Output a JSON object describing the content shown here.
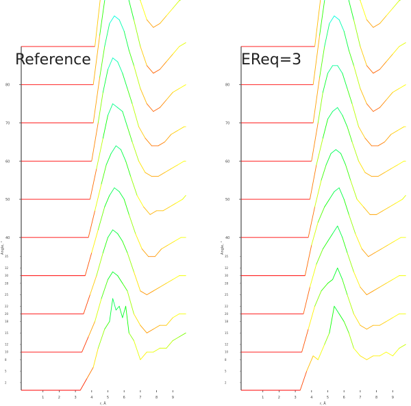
{
  "chart_data": [
    {
      "type": "line",
      "title": "Reference",
      "xlabel": "r, Å",
      "ylabel": "Angle, °",
      "xlim": [
        0,
        10
      ],
      "ylim": [
        0,
        95
      ],
      "xticks": [
        1,
        2,
        3,
        4,
        5,
        6,
        7,
        8,
        9
      ],
      "yticks": [
        40,
        50,
        60,
        70,
        80
      ],
      "ytick_labels": [
        "40",
        "50",
        "60",
        "70",
        "80"
      ],
      "small_yticks": [
        2,
        5,
        8,
        10,
        12,
        15,
        18,
        20,
        22,
        25,
        28,
        30,
        32,
        35
      ],
      "small_ytick_labels": [
        "2",
        "5",
        "8",
        "10",
        "12",
        "15",
        "18",
        "20",
        "22",
        "25",
        "28",
        "30",
        "32",
        "35"
      ],
      "grid": false,
      "colormap": [
        "#ff0000",
        "#ffff00",
        "#00ff00",
        "#00ffff",
        "#0000ff"
      ],
      "series": [
        {
          "offset": 0,
          "onset": 3.3,
          "x": [
            3.3,
            3.7,
            4.1,
            4.4,
            4.8,
            5.1,
            5.3,
            5.5,
            5.7,
            5.9,
            6.1,
            6.3,
            6.6,
            7.0,
            7.4,
            7.8,
            8.2,
            8.6,
            9.0,
            9.4,
            9.8
          ],
          "y": [
            0,
            3,
            6,
            11,
            16,
            18,
            24,
            21,
            22,
            19,
            22,
            15,
            13,
            8,
            10,
            10,
            11,
            11,
            13,
            14,
            15
          ]
        },
        {
          "offset": 10,
          "onset": 3.4,
          "x": [
            3.4,
            3.8,
            4.2,
            4.6,
            5.0,
            5.3,
            5.6,
            5.9,
            6.2,
            6.6,
            7.0,
            7.4,
            7.8,
            8.2,
            8.6,
            9.0,
            9.4,
            9.8
          ],
          "y": [
            0,
            4,
            8,
            14,
            19,
            21,
            20,
            18,
            16,
            10,
            7,
            5,
            6,
            7,
            7,
            9,
            10,
            10
          ]
        },
        {
          "offset": 20,
          "onset": 3.5,
          "x": [
            3.5,
            3.9,
            4.3,
            4.7,
            5.0,
            5.3,
            5.6,
            5.9,
            6.2,
            6.6,
            7.0,
            7.4,
            7.8,
            8.2,
            8.6,
            9.0,
            9.4,
            9.8
          ],
          "y": [
            0,
            5,
            10,
            16,
            20,
            22,
            21,
            19,
            16,
            11,
            6,
            5,
            6,
            7,
            8,
            9,
            10,
            10
          ]
        },
        {
          "offset": 30,
          "onset": 3.6,
          "x": [
            3.6,
            4.0,
            4.4,
            4.8,
            5.1,
            5.4,
            5.7,
            6.0,
            6.3,
            6.7,
            7.1,
            7.5,
            7.9,
            8.3,
            8.7,
            9.1,
            9.5,
            9.8
          ],
          "y": [
            0,
            6,
            12,
            18,
            21,
            23,
            22,
            20,
            16,
            11,
            7,
            5,
            5,
            7,
            8,
            9,
            10,
            10
          ]
        },
        {
          "offset": 40,
          "onset": 3.8,
          "x": [
            3.8,
            4.2,
            4.6,
            4.9,
            5.2,
            5.5,
            5.8,
            6.1,
            6.4,
            6.8,
            7.2,
            7.6,
            8.0,
            8.4,
            8.8,
            9.2,
            9.6,
            9.8
          ],
          "y": [
            0,
            7,
            14,
            19,
            22,
            24,
            23,
            20,
            16,
            11,
            8,
            6,
            7,
            7,
            8,
            9,
            10,
            11
          ]
        },
        {
          "offset": 50,
          "onset": 3.9,
          "x": [
            3.9,
            4.3,
            4.7,
            5.0,
            5.3,
            5.6,
            5.9,
            6.2,
            6.5,
            6.9,
            7.3,
            7.7,
            8.1,
            8.5,
            8.9,
            9.3,
            9.7,
            9.8
          ],
          "y": [
            0,
            8,
            16,
            22,
            25,
            24,
            23,
            19,
            15,
            10,
            7,
            6,
            6,
            7,
            8,
            9,
            10,
            10
          ]
        },
        {
          "offset": 60,
          "onset": 4.0,
          "x": [
            4.0,
            4.4,
            4.7,
            5.0,
            5.3,
            5.6,
            5.9,
            6.2,
            6.5,
            6.9,
            7.3,
            7.7,
            8.1,
            8.5,
            8.9,
            9.3,
            9.7,
            9.8
          ],
          "y": [
            0,
            10,
            18,
            24,
            27,
            26,
            23,
            19,
            15,
            9,
            6,
            4,
            4,
            5,
            7,
            8,
            9,
            9
          ]
        },
        {
          "offset": 70,
          "onset": 4.1,
          "x": [
            4.1,
            4.5,
            4.8,
            5.1,
            5.4,
            5.7,
            6.0,
            6.3,
            6.6,
            7.0,
            7.4,
            7.8,
            8.2,
            8.6,
            9.0,
            9.4,
            9.8
          ],
          "y": [
            0,
            12,
            20,
            26,
            28,
            27,
            24,
            19,
            15,
            9,
            5,
            3,
            4,
            6,
            8,
            9,
            10
          ]
        },
        {
          "offset": 80,
          "onset": 4.1,
          "x": [
            4.1,
            4.5,
            4.8,
            5.1,
            5.4,
            5.7,
            6.0,
            6.3,
            6.6,
            7.0,
            7.4,
            7.8,
            8.2,
            8.6,
            9.0,
            9.4,
            9.8
          ],
          "y": [
            0,
            13,
            22,
            28,
            31,
            30,
            27,
            22,
            17,
            10,
            5,
            3,
            4,
            6,
            8,
            10,
            11
          ]
        },
        {
          "offset": 90,
          "onset": 4.2,
          "x": [
            4.2,
            4.6,
            4.9,
            5.2,
            5.4,
            5.6,
            5.8,
            6.0,
            6.3,
            6.6,
            7.0,
            7.4,
            7.8,
            8.2,
            8.6,
            9.0,
            9.4,
            9.8
          ],
          "y": [
            0,
            15,
            25,
            33,
            37,
            38,
            37,
            33,
            27,
            20,
            12,
            7,
            5,
            6,
            8,
            10,
            12,
            13
          ]
        }
      ]
    },
    {
      "type": "line",
      "title": "EReq=3",
      "xlabel": "r, Å",
      "ylabel": "Angle, °",
      "xlim": [
        0,
        10
      ],
      "ylim": [
        0,
        95
      ],
      "xticks": [
        1,
        2,
        3,
        4,
        5,
        6,
        7,
        8,
        9
      ],
      "yticks": [
        40,
        50,
        60,
        70,
        80
      ],
      "ytick_labels": [
        "40",
        "50",
        "60",
        "70",
        "80"
      ],
      "small_yticks": [
        2,
        5,
        8,
        10,
        12,
        15,
        18,
        20,
        22,
        25,
        28,
        30,
        32,
        35
      ],
      "small_ytick_labels": [
        "2",
        "5",
        "8",
        "10",
        "12",
        "15",
        "18",
        "20",
        "22",
        "25",
        "28",
        "30",
        "32",
        "35"
      ],
      "grid": false,
      "colormap": [
        "#ff0000",
        "#ffff00",
        "#00ff00",
        "#00ffff",
        "#0000ff"
      ],
      "series": [
        {
          "offset": 0,
          "onset": 3.3,
          "x": [
            3.3,
            3.7,
            4.1,
            4.4,
            4.8,
            5.1,
            5.4,
            5.7,
            6.0,
            6.3,
            6.6,
            7.0,
            7.4,
            7.8,
            8.2,
            8.6,
            9.0,
            9.4,
            9.8
          ],
          "y": [
            0,
            5,
            9,
            8,
            12,
            15,
            22,
            20,
            18,
            15,
            11,
            9,
            8,
            9,
            9,
            10,
            9,
            11,
            12
          ]
        },
        {
          "offset": 10,
          "onset": 3.4,
          "x": [
            3.4,
            3.8,
            4.2,
            4.6,
            5.0,
            5.3,
            5.6,
            5.9,
            6.2,
            6.6,
            7.0,
            7.4,
            7.8,
            8.2,
            8.6,
            9.0,
            9.4,
            9.8
          ],
          "y": [
            0,
            6,
            12,
            16,
            18,
            19,
            22,
            19,
            15,
            10,
            7,
            6,
            7,
            7,
            8,
            9,
            10,
            10
          ]
        },
        {
          "offset": 20,
          "onset": 3.5,
          "x": [
            3.5,
            3.9,
            4.3,
            4.7,
            5.0,
            5.3,
            5.6,
            5.9,
            6.2,
            6.6,
            7.0,
            7.4,
            7.8,
            8.2,
            8.6,
            9.0,
            9.4,
            9.8
          ],
          "y": [
            0,
            7,
            13,
            17,
            19,
            21,
            23,
            20,
            16,
            11,
            7,
            5,
            6,
            7,
            8,
            9,
            10,
            10
          ]
        },
        {
          "offset": 30,
          "onset": 3.6,
          "x": [
            3.6,
            4.0,
            4.4,
            4.8,
            5.1,
            5.4,
            5.7,
            6.0,
            6.3,
            6.7,
            7.1,
            7.5,
            7.9,
            8.3,
            8.7,
            9.1,
            9.5,
            9.8
          ],
          "y": [
            0,
            8,
            14,
            18,
            20,
            22,
            23,
            20,
            16,
            11,
            7,
            5,
            6,
            7,
            8,
            9,
            10,
            10
          ]
        },
        {
          "offset": 40,
          "onset": 3.8,
          "x": [
            3.8,
            4.2,
            4.6,
            4.9,
            5.2,
            5.5,
            5.8,
            6.1,
            6.4,
            6.8,
            7.2,
            7.6,
            8.0,
            8.4,
            8.8,
            9.2,
            9.6,
            9.8
          ],
          "y": [
            0,
            8,
            15,
            19,
            22,
            23,
            22,
            19,
            15,
            10,
            8,
            6,
            6,
            7,
            8,
            9,
            10,
            11
          ]
        },
        {
          "offset": 50,
          "onset": 3.9,
          "x": [
            3.9,
            4.3,
            4.7,
            5.0,
            5.3,
            5.6,
            5.9,
            6.2,
            6.5,
            6.9,
            7.3,
            7.7,
            8.1,
            8.5,
            8.9,
            9.3,
            9.7,
            9.8
          ],
          "y": [
            0,
            9,
            16,
            21,
            23,
            24,
            22,
            19,
            15,
            10,
            7,
            6,
            6,
            7,
            8,
            9,
            10,
            10
          ]
        },
        {
          "offset": 60,
          "onset": 4.0,
          "x": [
            4.0,
            4.4,
            4.7,
            5.0,
            5.3,
            5.6,
            5.9,
            6.2,
            6.5,
            6.9,
            7.3,
            7.7,
            8.1,
            8.5,
            8.9,
            9.3,
            9.7,
            9.8
          ],
          "y": [
            0,
            10,
            18,
            23,
            25,
            25,
            23,
            19,
            15,
            9,
            6,
            4,
            4,
            5,
            7,
            8,
            9,
            9
          ]
        },
        {
          "offset": 70,
          "onset": 4.1,
          "x": [
            4.1,
            4.5,
            4.8,
            5.1,
            5.4,
            5.7,
            6.0,
            6.3,
            6.6,
            7.0,
            7.4,
            7.8,
            8.2,
            8.6,
            9.0,
            9.4,
            9.8
          ],
          "y": [
            0,
            12,
            20,
            26,
            28,
            27,
            24,
            19,
            15,
            9,
            5,
            3,
            4,
            6,
            8,
            9,
            10
          ]
        },
        {
          "offset": 80,
          "onset": 4.1,
          "x": [
            4.1,
            4.5,
            4.8,
            5.1,
            5.4,
            5.7,
            6.0,
            6.3,
            6.6,
            7.0,
            7.4,
            7.8,
            8.2,
            8.6,
            9.0,
            9.4,
            9.8
          ],
          "y": [
            0,
            13,
            22,
            28,
            30,
            30,
            27,
            22,
            17,
            10,
            5,
            3,
            4,
            6,
            8,
            10,
            11
          ]
        },
        {
          "offset": 90,
          "onset": 4.2,
          "x": [
            4.2,
            4.6,
            4.9,
            5.2,
            5.4,
            5.6,
            5.8,
            6.0,
            6.3,
            6.6,
            7.0,
            7.4,
            7.8,
            8.2,
            8.6,
            9.0,
            9.4,
            9.8
          ],
          "y": [
            0,
            14,
            24,
            31,
            35,
            36,
            35,
            32,
            27,
            20,
            12,
            7,
            5,
            6,
            8,
            10,
            12,
            13
          ]
        }
      ]
    }
  ]
}
